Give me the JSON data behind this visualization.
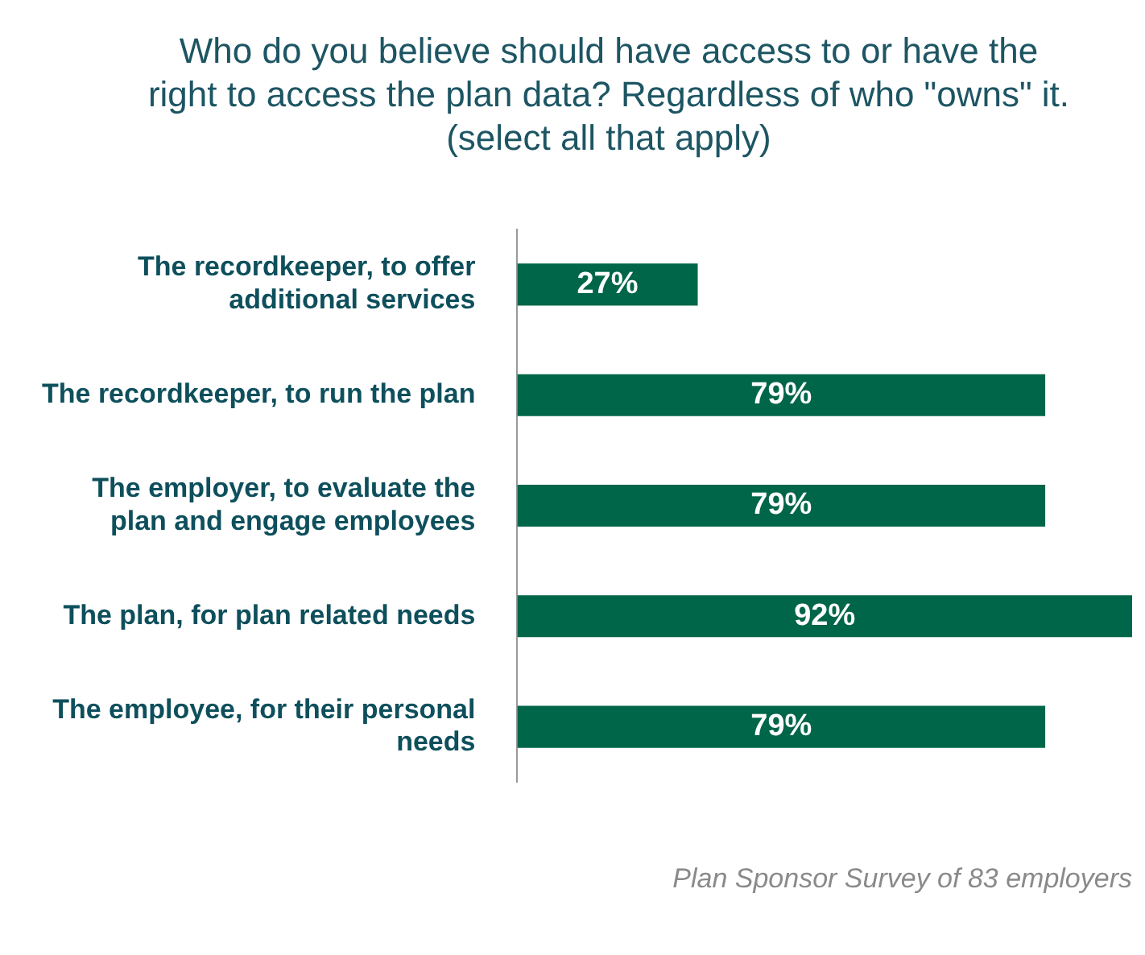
{
  "chart_data": {
    "type": "bar",
    "orientation": "horizontal",
    "title": "Who do you believe should have access to or have the right to access the plan data? Regardless of who \"owns\" it. (select all that apply)",
    "categories": [
      "The recordkeeper, to offer additional services",
      "The recordkeeper, to run the plan",
      "The employer, to evaluate the plan and engage employees",
      "The plan, for plan related needs",
      "The employee, for their personal needs"
    ],
    "values": [
      27,
      79,
      79,
      92,
      79
    ],
    "value_labels": [
      "27%",
      "79%",
      "79%",
      "92%",
      "79%"
    ],
    "color": "#006649",
    "legend": false,
    "annotations": [
      "Plan Sponsor Survey of 83 employers"
    ]
  }
}
